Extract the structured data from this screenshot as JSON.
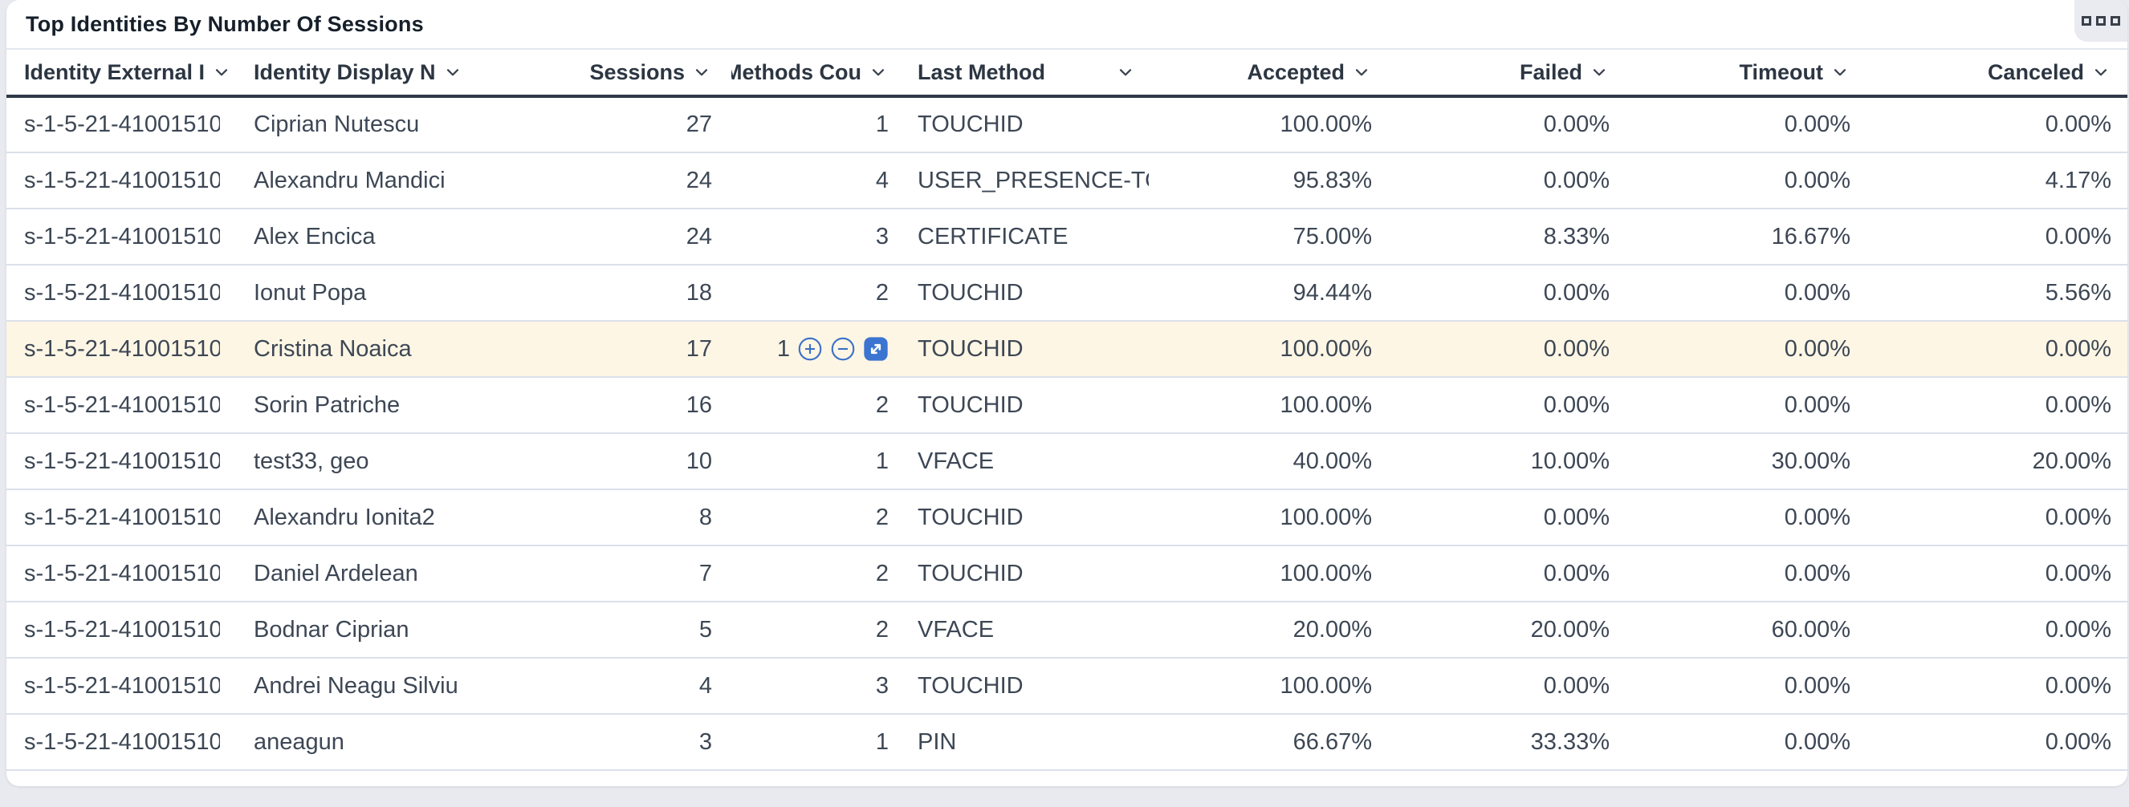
{
  "panel": {
    "title": "Top Identities By Number Of Sessions",
    "menu_icon": "grid-menu-icon"
  },
  "colors": {
    "accent_blue": "#3b74d1",
    "row_highlight": "#fdf6e4",
    "header_rule": "#2f3947",
    "row_border": "#dbe0ea",
    "page_background": "#e8eaf0",
    "card_background": "#ffffff",
    "title_text": "#161f2a",
    "body_text": "#3d4755"
  },
  "table": {
    "columns": [
      {
        "id": "external_id",
        "label": "Identity External I",
        "align": "left",
        "sortable": true
      },
      {
        "id": "display_name",
        "label": "Identity Display N",
        "align": "left",
        "sortable": true
      },
      {
        "id": "sessions",
        "label": "Sessions",
        "align": "right",
        "sortable": true
      },
      {
        "id": "methods_count",
        "label": "Methods Cou",
        "align": "right",
        "sortable": true
      },
      {
        "id": "last_method",
        "label": "Last Method",
        "align": "left",
        "sortable": true,
        "chevron_far_right": true
      },
      {
        "id": "accepted",
        "label": "Accepted",
        "align": "right",
        "sortable": true
      },
      {
        "id": "failed",
        "label": "Failed",
        "align": "right",
        "sortable": true
      },
      {
        "id": "timeout",
        "label": "Timeout",
        "align": "right",
        "sortable": true
      },
      {
        "id": "canceled",
        "label": "Canceled",
        "align": "right",
        "sortable": true
      }
    ],
    "rows": [
      {
        "external_id": "s-1-5-21-41001510",
        "display_name": "Ciprian Nutescu",
        "sessions": "27",
        "methods_count": "1",
        "last_method": "TOUCHID",
        "accepted": "100.00%",
        "failed": "0.00%",
        "timeout": "0.00%",
        "canceled": "0.00%"
      },
      {
        "external_id": "s-1-5-21-41001510",
        "display_name": "Alexandru Mandici",
        "sessions": "24",
        "methods_count": "4",
        "last_method": "USER_PRESENCE-TOUCHID",
        "accepted": "95.83%",
        "failed": "0.00%",
        "timeout": "0.00%",
        "canceled": "4.17%"
      },
      {
        "external_id": "s-1-5-21-41001510",
        "display_name": "Alex Encica",
        "sessions": "24",
        "methods_count": "3",
        "last_method": "CERTIFICATE",
        "accepted": "75.00%",
        "failed": "8.33%",
        "timeout": "16.67%",
        "canceled": "0.00%"
      },
      {
        "external_id": "s-1-5-21-41001510",
        "display_name": "Ionut Popa",
        "sessions": "18",
        "methods_count": "2",
        "last_method": "TOUCHID",
        "accepted": "94.44%",
        "failed": "0.00%",
        "timeout": "0.00%",
        "canceled": "5.56%"
      },
      {
        "external_id": "s-1-5-21-41001510",
        "display_name": "Cristina Noaica",
        "sessions": "17",
        "methods_count": "1",
        "last_method": "TOUCHID",
        "accepted": "100.00%",
        "failed": "0.00%",
        "timeout": "0.00%",
        "canceled": "0.00%",
        "highlighted": true,
        "row_actions": [
          {
            "name": "include",
            "icon": "plus-circle-icon"
          },
          {
            "name": "exclude",
            "icon": "minus-circle-icon"
          },
          {
            "name": "expand",
            "icon": "expand-diagonal-icon"
          }
        ]
      },
      {
        "external_id": "s-1-5-21-41001510",
        "display_name": "Sorin Patriche",
        "sessions": "16",
        "methods_count": "2",
        "last_method": "TOUCHID",
        "accepted": "100.00%",
        "failed": "0.00%",
        "timeout": "0.00%",
        "canceled": "0.00%"
      },
      {
        "external_id": "s-1-5-21-41001510",
        "display_name": "test33, geo",
        "sessions": "10",
        "methods_count": "1",
        "last_method": "VFACE",
        "accepted": "40.00%",
        "failed": "10.00%",
        "timeout": "30.00%",
        "canceled": "20.00%"
      },
      {
        "external_id": "s-1-5-21-41001510",
        "display_name": "Alexandru Ionita2",
        "sessions": "8",
        "methods_count": "2",
        "last_method": "TOUCHID",
        "accepted": "100.00%",
        "failed": "0.00%",
        "timeout": "0.00%",
        "canceled": "0.00%"
      },
      {
        "external_id": "s-1-5-21-41001510",
        "display_name": "Daniel Ardelean",
        "sessions": "7",
        "methods_count": "2",
        "last_method": "TOUCHID",
        "accepted": "100.00%",
        "failed": "0.00%",
        "timeout": "0.00%",
        "canceled": "0.00%"
      },
      {
        "external_id": "s-1-5-21-41001510",
        "display_name": "Bodnar Ciprian",
        "sessions": "5",
        "methods_count": "2",
        "last_method": "VFACE",
        "accepted": "20.00%",
        "failed": "20.00%",
        "timeout": "60.00%",
        "canceled": "0.00%"
      },
      {
        "external_id": "s-1-5-21-41001510",
        "display_name": "Andrei Neagu Silviu",
        "sessions": "4",
        "methods_count": "3",
        "last_method": "TOUCHID",
        "accepted": "100.00%",
        "failed": "0.00%",
        "timeout": "0.00%",
        "canceled": "0.00%"
      },
      {
        "external_id": "s-1-5-21-41001510",
        "display_name": "aneagun",
        "sessions": "3",
        "methods_count": "1",
        "last_method": "PIN",
        "accepted": "66.67%",
        "failed": "33.33%",
        "timeout": "0.00%",
        "canceled": "0.00%"
      }
    ]
  }
}
